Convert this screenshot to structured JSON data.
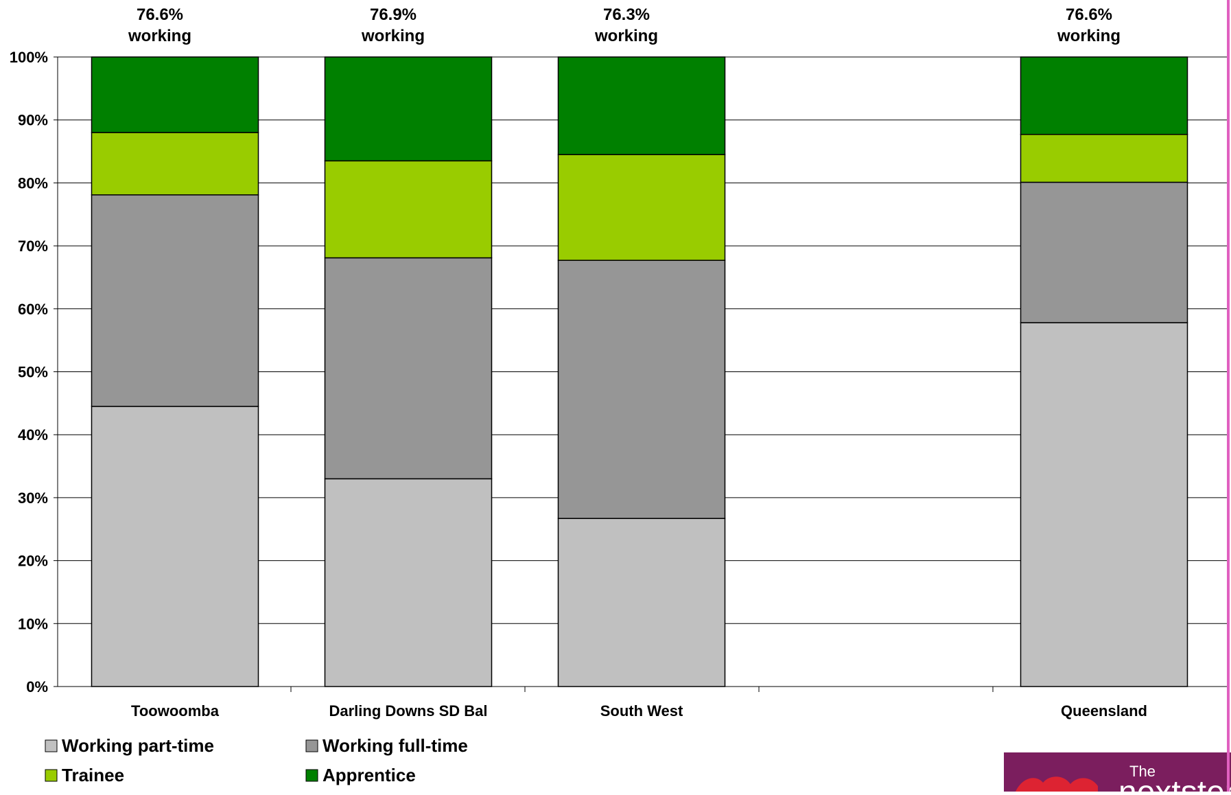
{
  "chart_data": {
    "type": "bar",
    "stacked": true,
    "categories": [
      "Toowoomba",
      "Darling Downs SD Bal",
      "South West",
      "",
      "Queensland"
    ],
    "series": [
      {
        "name": "Working part-time",
        "color": "#C0C0C0",
        "values": [
          44.5,
          33.0,
          26.7,
          null,
          57.8
        ]
      },
      {
        "name": "Working full-time",
        "color": "#969696",
        "values": [
          33.6,
          35.1,
          41.0,
          null,
          22.3
        ]
      },
      {
        "name": "Trainee",
        "color": "#99CC00",
        "values": [
          9.9,
          15.4,
          16.8,
          null,
          7.6
        ]
      },
      {
        "name": "Apprentice",
        "color": "#008000",
        "values": [
          12.0,
          16.5,
          15.5,
          null,
          12.3
        ]
      }
    ],
    "top_labels": [
      {
        "value": "76.6%",
        "text": "working"
      },
      {
        "value": "76.9%",
        "text": "working"
      },
      {
        "value": "76.3%",
        "text": "working"
      },
      null,
      {
        "value": "76.6%",
        "text": "working"
      }
    ],
    "y_ticks": [
      "0%",
      "10%",
      "20%",
      "30%",
      "40%",
      "50%",
      "60%",
      "70%",
      "80%",
      "90%",
      "100%"
    ],
    "ylim": [
      0,
      100
    ],
    "grid": true,
    "legend_position": "bottom-left"
  },
  "logo": {
    "text_small": "The",
    "text_large": "nextstep",
    "background": "#7B1E5E"
  }
}
